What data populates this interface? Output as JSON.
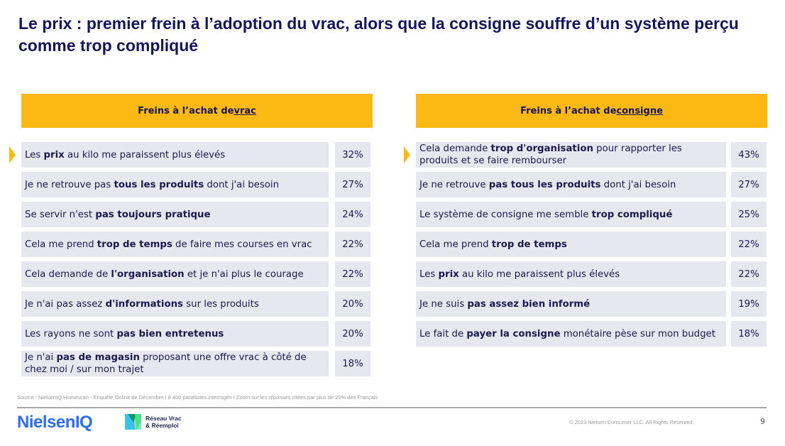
{
  "title": "Le prix : premier frein à l’adoption du vrac, alors que la consigne souffre d’un système perçu comme trop compliqué",
  "panels": [
    {
      "header_prefix": "Freins à l’achat de ",
      "header_keyword": "vrac",
      "rows": [
        {
          "segments": [
            {
              "t": "Les "
            },
            {
              "t": "prix",
              "b": true
            },
            {
              "t": " au kilo me paraissent plus élevés"
            }
          ],
          "pct": "32%",
          "highlight": true
        },
        {
          "segments": [
            {
              "t": "Je ne retrouve pas "
            },
            {
              "t": "tous les produits",
              "b": true
            },
            {
              "t": " dont j'ai besoin"
            }
          ],
          "pct": "27%"
        },
        {
          "segments": [
            {
              "t": "Se servir n'est "
            },
            {
              "t": "pas toujours pratique",
              "b": true
            }
          ],
          "pct": "24%"
        },
        {
          "segments": [
            {
              "t": "Cela me prend "
            },
            {
              "t": "trop de temps",
              "b": true
            },
            {
              "t": " de faire mes courses en vrac"
            }
          ],
          "pct": "22%"
        },
        {
          "segments": [
            {
              "t": "Cela demande de "
            },
            {
              "t": "l'organisation",
              "b": true
            },
            {
              "t": " et je n'ai plus le courage"
            }
          ],
          "pct": "22%"
        },
        {
          "segments": [
            {
              "t": "Je n'ai pas assez "
            },
            {
              "t": "d'informations",
              "b": true
            },
            {
              "t": " sur les produits"
            }
          ],
          "pct": "20%"
        },
        {
          "segments": [
            {
              "t": "Les rayons ne sont "
            },
            {
              "t": "pas bien entretenus",
              "b": true
            }
          ],
          "pct": "20%"
        },
        {
          "segments": [
            {
              "t": "Je n'ai "
            },
            {
              "t": "pas de magasin",
              "b": true
            },
            {
              "t": " proposant une offre vrac à côté de chez moi /  sur mon trajet"
            }
          ],
          "pct": "18%"
        }
      ]
    },
    {
      "header_prefix": "Freins à l’achat de ",
      "header_keyword": "consigne",
      "rows": [
        {
          "segments": [
            {
              "t": "Cela demande "
            },
            {
              "t": "trop d'organisation",
              "b": true
            },
            {
              "t": " pour rapporter les produits et se faire rembourser"
            }
          ],
          "pct": "43%",
          "highlight": true
        },
        {
          "segments": [
            {
              "t": "Je ne retrouve "
            },
            {
              "t": "pas tous les produits",
              "b": true
            },
            {
              "t": " dont j'ai besoin"
            }
          ],
          "pct": "27%"
        },
        {
          "segments": [
            {
              "t": "Le système de consigne me semble "
            },
            {
              "t": "trop compliqué",
              "b": true
            }
          ],
          "pct": "25%"
        },
        {
          "segments": [
            {
              "t": "Cela me prend "
            },
            {
              "t": "trop de temps",
              "b": true
            }
          ],
          "pct": "22%"
        },
        {
          "segments": [
            {
              "t": "Les "
            },
            {
              "t": "prix",
              "b": true
            },
            {
              "t": " au kilo me paraissent plus élevés"
            }
          ],
          "pct": "22%"
        },
        {
          "segments": [
            {
              "t": "Je ne suis "
            },
            {
              "t": "pas assez bien informé",
              "b": true
            }
          ],
          "pct": "19%"
        },
        {
          "segments": [
            {
              "t": "Le fait de "
            },
            {
              "t": "payer la consigne",
              "b": true
            },
            {
              "t": " monétaire pèse sur mon budget"
            }
          ],
          "pct": "18%"
        }
      ]
    }
  ],
  "footer": {
    "source": "Source : NielsenIQ Homescan - Enquête Online de Décembre I 8 400 panélistes interrogés I Zoom sur les réponses citées par plus de 20% des Français",
    "logo_nielseniq": "NielsenIQ",
    "logo_reseau_line1": "Réseau Vrac",
    "logo_reseau_line2": "& Réemploi",
    "copyright": "© 2023 Nielsen Consumer LLC. All Rights Reserved.",
    "page_number": "9"
  },
  "colors": {
    "accent": "#FDB913",
    "row_bg": "#E6E7EF",
    "title": "#16145a",
    "brand_blue": "#2b6cf0"
  }
}
